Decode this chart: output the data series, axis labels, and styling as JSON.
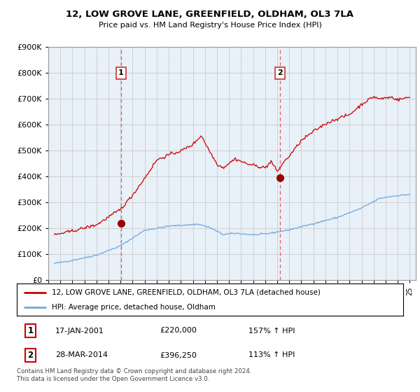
{
  "title": "12, LOW GROVE LANE, GREENFIELD, OLDHAM, OL3 7LA",
  "subtitle": "Price paid vs. HM Land Registry's House Price Index (HPI)",
  "legend_line1": "12, LOW GROVE LANE, GREENFIELD, OLDHAM, OL3 7LA (detached house)",
  "legend_line2": "HPI: Average price, detached house, Oldham",
  "annotation1_date": "17-JAN-2001",
  "annotation1_price": "£220,000",
  "annotation1_hpi": "157% ↑ HPI",
  "annotation2_date": "28-MAR-2014",
  "annotation2_price": "£396,250",
  "annotation2_hpi": "113% ↑ HPI",
  "footnote": "Contains HM Land Registry data © Crown copyright and database right 2024.\nThis data is licensed under the Open Government Licence v3.0.",
  "hpi_color": "#6fa8dc",
  "price_color": "#cc0000",
  "vline_color": "#e06060",
  "marker_color": "#990000",
  "bg_fill_color": "#ddeeff",
  "background_color": "#ffffff",
  "grid_color": "#cccccc",
  "ylim": [
    0,
    900000
  ],
  "yticks": [
    0,
    100000,
    200000,
    300000,
    400000,
    500000,
    600000,
    700000,
    800000,
    900000
  ],
  "sale1_x": 2001.04,
  "sale1_y": 220000,
  "sale2_x": 2014.23,
  "sale2_y": 396250,
  "xmin": 1995.0,
  "xmax": 2025.5
}
